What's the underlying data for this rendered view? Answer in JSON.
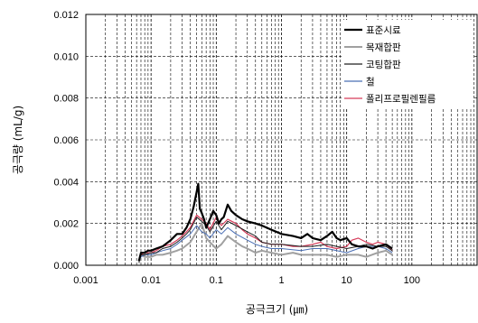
{
  "chart_data": {
    "type": "line",
    "title": "",
    "xlabel": "공극크기 (㎛)",
    "ylabel": "공극량 (mL/g)",
    "xscale": "log",
    "xlim": [
      0.001,
      1000
    ],
    "ylim": [
      0,
      0.012
    ],
    "grid": "on (x major/minor dashed; y major dashed)",
    "legend_position": "top-right",
    "x_tick_labels": [
      "0.001",
      "0.01",
      "0.1",
      "1",
      "10",
      "100"
    ],
    "y_tick_labels": [
      "0.000",
      "0.002",
      "0.004",
      "0.006",
      "0.008",
      "0.010",
      "0.012"
    ],
    "series": [
      {
        "name": "표준시료",
        "color": "#000000",
        "width": 2.2,
        "x": [
          0.0065,
          0.007,
          0.008,
          0.009,
          0.01,
          0.012,
          0.015,
          0.02,
          0.025,
          0.03,
          0.035,
          0.04,
          0.045,
          0.05,
          0.053,
          0.056,
          0.06,
          0.065,
          0.07,
          0.08,
          0.09,
          0.1,
          0.11,
          0.12,
          0.13,
          0.15,
          0.17,
          0.2,
          0.25,
          0.3,
          0.4,
          0.5,
          0.7,
          1,
          1.5,
          2,
          2.5,
          3,
          4,
          5,
          6,
          7,
          8,
          10,
          12,
          15,
          20,
          25,
          30,
          40,
          50
        ],
        "y": [
          0.0002,
          0.0006,
          0.0006,
          0.0007,
          0.0007,
          0.0008,
          0.0009,
          0.0012,
          0.0015,
          0.0015,
          0.0018,
          0.0022,
          0.0028,
          0.0035,
          0.0039,
          0.0027,
          0.0025,
          0.0022,
          0.0018,
          0.0022,
          0.0026,
          0.0024,
          0.002,
          0.0022,
          0.0023,
          0.0029,
          0.0026,
          0.0024,
          0.0022,
          0.0021,
          0.002,
          0.0019,
          0.0017,
          0.0015,
          0.0014,
          0.0013,
          0.0015,
          0.0013,
          0.0012,
          0.0014,
          0.0016,
          0.0013,
          0.0012,
          0.0013,
          0.001,
          0.0009,
          0.0009,
          0.0008,
          0.0009,
          0.001,
          0.0008
        ]
      },
      {
        "name": "목재합판",
        "color": "#a0a0a0",
        "width": 2.0,
        "x": [
          0.0065,
          0.007,
          0.008,
          0.01,
          0.012,
          0.015,
          0.02,
          0.025,
          0.03,
          0.04,
          0.05,
          0.06,
          0.07,
          0.08,
          0.1,
          0.12,
          0.15,
          0.2,
          0.25,
          0.3,
          0.4,
          0.5,
          0.7,
          1,
          1.5,
          2,
          3,
          5,
          7,
          10,
          15,
          20,
          30,
          40,
          50
        ],
        "y": [
          0.0001,
          0.0005,
          0.0004,
          0.0004,
          0.0005,
          0.0005,
          0.0006,
          0.0007,
          0.0008,
          0.0011,
          0.0016,
          0.002,
          0.0013,
          0.0011,
          0.0008,
          0.001,
          0.0014,
          0.0011,
          0.0009,
          0.0008,
          0.0006,
          0.0007,
          0.0006,
          0.0005,
          0.0006,
          0.0005,
          0.0005,
          0.0005,
          0.0004,
          0.0005,
          0.0005,
          0.0004,
          0.0006,
          0.0007,
          0.0005
        ]
      },
      {
        "name": "코팅합판",
        "color": "#202020",
        "width": 1.0,
        "x": [
          0.0065,
          0.007,
          0.008,
          0.01,
          0.012,
          0.015,
          0.02,
          0.025,
          0.03,
          0.035,
          0.04,
          0.05,
          0.06,
          0.07,
          0.08,
          0.1,
          0.12,
          0.15,
          0.2,
          0.3,
          0.4,
          0.5,
          0.7,
          1,
          2,
          3,
          5,
          7,
          10,
          15,
          20,
          30,
          40,
          50
        ],
        "y": [
          0.0002,
          0.0005,
          0.0005,
          0.0006,
          0.0006,
          0.0008,
          0.0009,
          0.0011,
          0.0013,
          0.0015,
          0.0017,
          0.0023,
          0.0021,
          0.0019,
          0.0016,
          0.0021,
          0.0017,
          0.0021,
          0.0019,
          0.0016,
          0.0014,
          0.0011,
          0.001,
          0.001,
          0.0009,
          0.0009,
          0.001,
          0.0009,
          0.0008,
          0.0009,
          0.001,
          0.0009,
          0.0009,
          0.0007
        ]
      },
      {
        "name": "철",
        "color": "#4a6fb5",
        "width": 1.0,
        "x": [
          0.0065,
          0.007,
          0.008,
          0.01,
          0.012,
          0.015,
          0.02,
          0.025,
          0.03,
          0.04,
          0.05,
          0.06,
          0.07,
          0.08,
          0.1,
          0.12,
          0.15,
          0.2,
          0.3,
          0.4,
          0.5,
          0.7,
          1,
          2,
          3,
          5,
          7,
          10,
          15,
          20,
          30,
          40,
          50
        ],
        "y": [
          0.0002,
          0.0004,
          0.0005,
          0.0005,
          0.0006,
          0.0007,
          0.0008,
          0.001,
          0.0012,
          0.0015,
          0.0019,
          0.0016,
          0.0015,
          0.0013,
          0.0017,
          0.0015,
          0.0018,
          0.0015,
          0.0012,
          0.001,
          0.0009,
          0.0008,
          0.0008,
          0.0007,
          0.0008,
          0.0008,
          0.0007,
          0.0006,
          0.0008,
          0.0009,
          0.0009,
          0.0008,
          0.0006
        ]
      },
      {
        "name": "폴리프로필렌필름",
        "color": "#d63c5a",
        "width": 1.2,
        "x": [
          0.0065,
          0.007,
          0.008,
          0.01,
          0.012,
          0.015,
          0.02,
          0.025,
          0.03,
          0.035,
          0.04,
          0.05,
          0.06,
          0.07,
          0.08,
          0.1,
          0.12,
          0.15,
          0.2,
          0.25,
          0.3,
          0.4,
          0.5,
          0.7,
          1,
          1.5,
          2,
          3,
          4,
          5,
          7,
          10,
          12,
          15,
          20,
          25,
          30,
          40,
          50
        ],
        "y": [
          0.0002,
          0.0005,
          0.0006,
          0.0006,
          0.0007,
          0.0009,
          0.001,
          0.0012,
          0.0014,
          0.0016,
          0.0018,
          0.0024,
          0.0022,
          0.002,
          0.0017,
          0.0023,
          0.0019,
          0.0022,
          0.002,
          0.0017,
          0.0015,
          0.0013,
          0.0011,
          0.001,
          0.001,
          0.0009,
          0.0009,
          0.001,
          0.0011,
          0.0009,
          0.0008,
          0.0009,
          0.0012,
          0.0013,
          0.0011,
          0.001,
          0.0011,
          0.001,
          0.0007
        ]
      }
    ]
  }
}
